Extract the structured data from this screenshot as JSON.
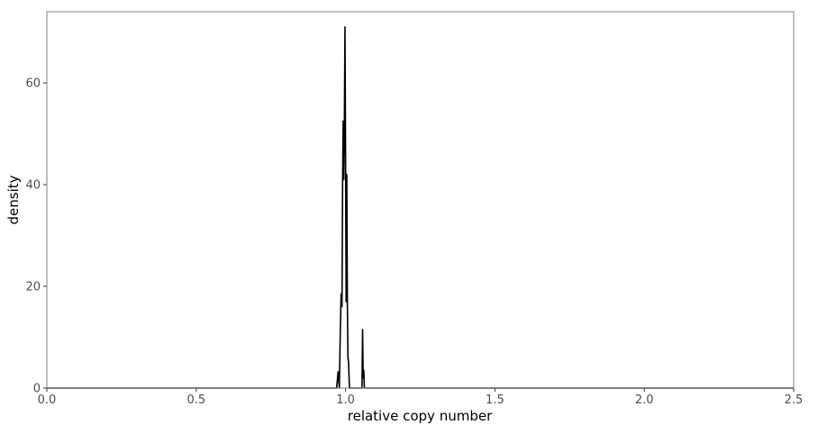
{
  "chart_data": {
    "type": "line",
    "title": "",
    "xlabel": "relative copy number",
    "ylabel": "density",
    "xlim": [
      0,
      2.5
    ],
    "ylim": [
      0,
      74
    ],
    "x_ticks": [
      0.0,
      0.5,
      1.0,
      1.5,
      2.0,
      2.5
    ],
    "x_tick_labels": [
      "0.0",
      "0.5",
      "1.0",
      "1.5",
      "2.0",
      "2.5"
    ],
    "y_ticks": [
      0,
      20,
      40,
      60
    ],
    "y_tick_labels": [
      "0",
      "20",
      "40",
      "60"
    ],
    "grid": false,
    "legend": "none",
    "series": [
      {
        "name": "density",
        "x": [
          0.0,
          0.97,
          0.975,
          0.979,
          0.982,
          0.985,
          0.988,
          0.99,
          0.992,
          0.994,
          0.996,
          0.998,
          1.0,
          1.002,
          1.004,
          1.006,
          1.008,
          1.01,
          1.013,
          1.016,
          1.02,
          1.03,
          1.04,
          1.05,
          1.055,
          1.057,
          1.059,
          1.061,
          1.063,
          1.066,
          1.07,
          2.5
        ],
        "y": [
          0.0,
          0.0,
          3.2,
          0.0,
          10.0,
          18.5,
          16.0,
          40.0,
          52.5,
          41.0,
          52.0,
          71.0,
          45.0,
          17.0,
          42.0,
          16.5,
          6.0,
          5.0,
          0.0,
          0.0,
          0.0,
          0.0,
          0.0,
          0.0,
          0.0,
          11.5,
          2.0,
          3.5,
          0.0,
          0.0,
          0.0,
          0.0
        ]
      }
    ]
  },
  "colors": {
    "line": "#000000",
    "panel_border": "#7f7f7f",
    "tick_label": "#4d4d4d",
    "axis_title": "#000000"
  }
}
